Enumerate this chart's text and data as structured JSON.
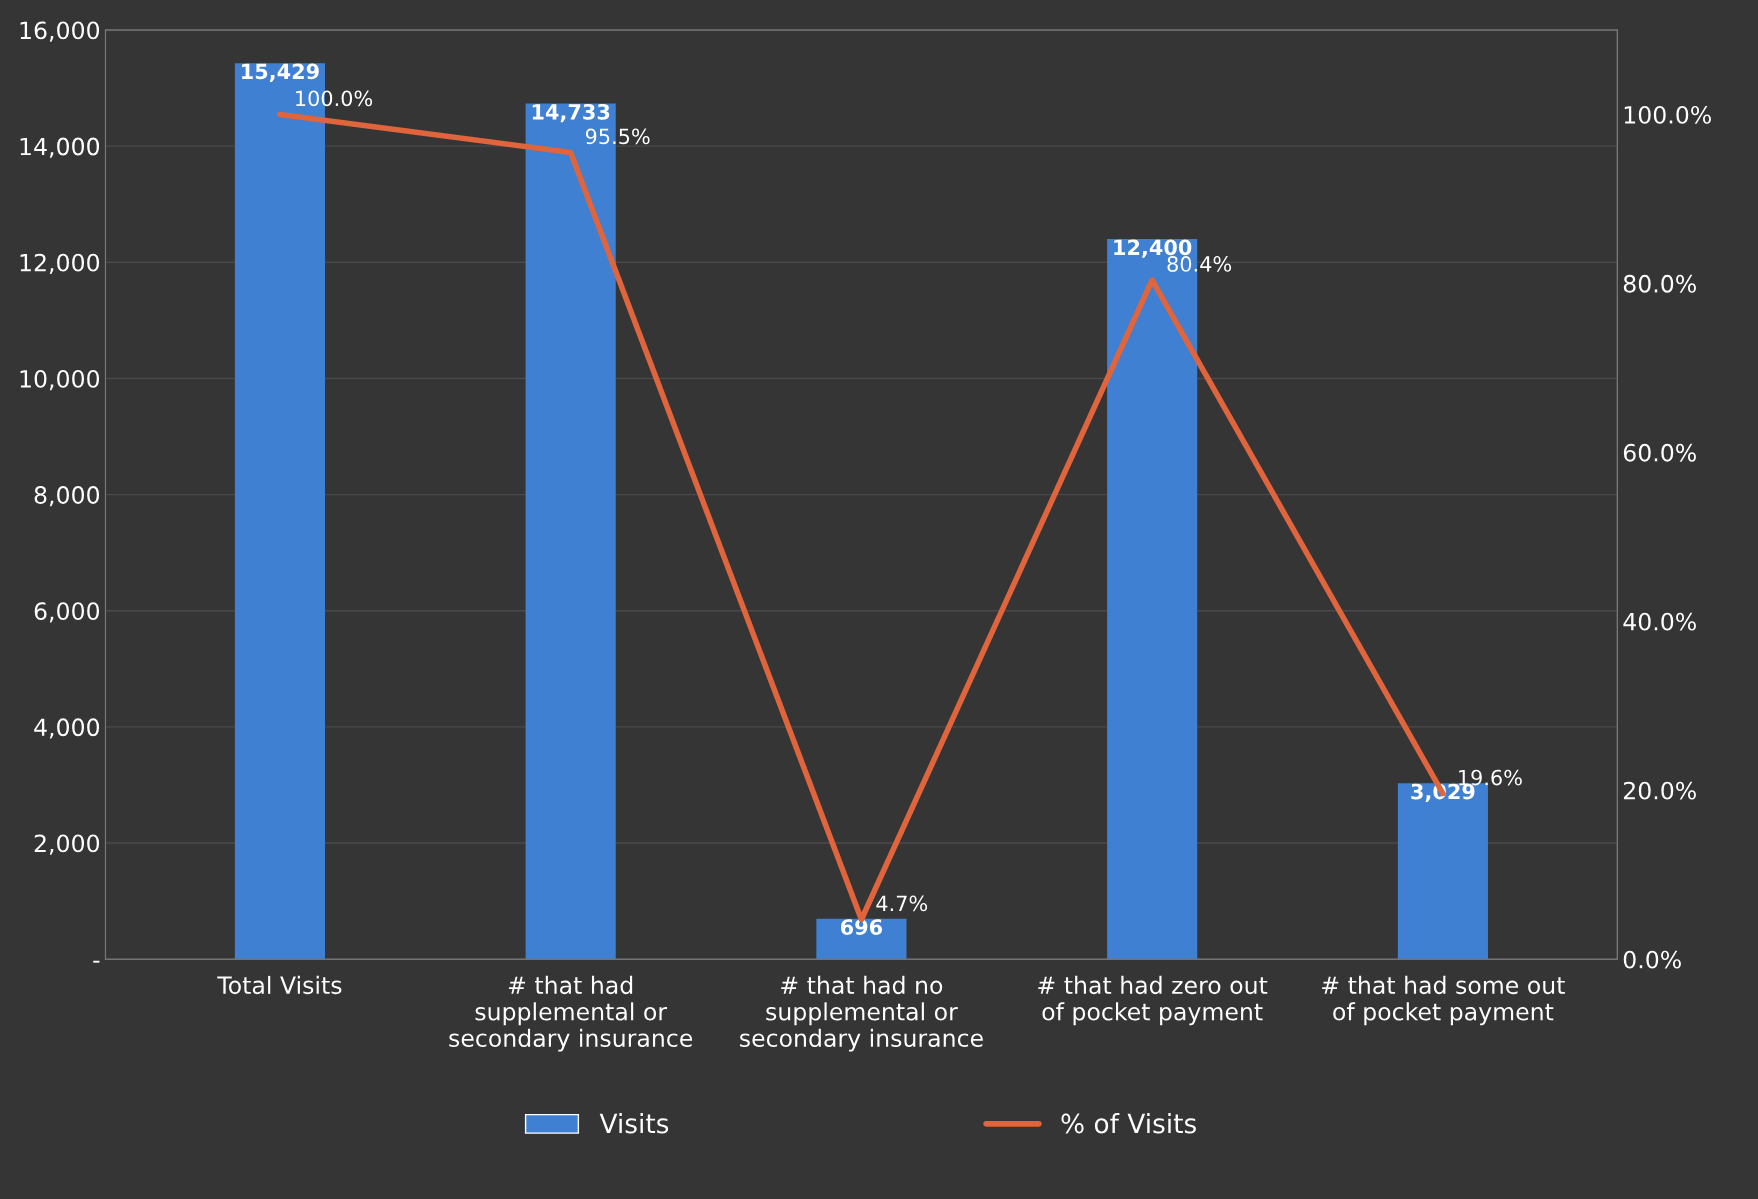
{
  "chart_data": {
    "type": "bar",
    "categories": [
      "Total Visits",
      "# that had supplemental or secondary insurance",
      "# that had no supplemental or secondary insurance",
      "# that had zero out of pocket payment",
      "# that had some out of pocket payment"
    ],
    "series": [
      {
        "name": "Visits",
        "color": "#3f80d2",
        "values": [
          15429,
          14733,
          696,
          12400,
          3029
        ],
        "value_labels": [
          "15,429",
          "14,733",
          "696",
          "12,400",
          "3,029"
        ]
      },
      {
        "name": "% of Visits",
        "type": "line",
        "axis": "y2",
        "color": "#e0643c",
        "values": [
          100.0,
          95.5,
          4.7,
          80.4,
          19.6
        ],
        "value_labels": [
          "100.0%",
          "95.5%",
          "4.7%",
          "80.4%",
          "19.6%"
        ]
      }
    ],
    "ylim": [
      0,
      16000
    ],
    "yticks": [
      {
        "value": 0,
        "label": "-"
      },
      {
        "value": 2000,
        "label": "2,000"
      },
      {
        "value": 4000,
        "label": "4,000"
      },
      {
        "value": 6000,
        "label": "6,000"
      },
      {
        "value": 8000,
        "label": "8,000"
      },
      {
        "value": 10000,
        "label": "10,000"
      },
      {
        "value": 12000,
        "label": "12,000"
      },
      {
        "value": 14000,
        "label": "14,000"
      },
      {
        "value": 16000,
        "label": "16,000"
      }
    ],
    "y2lim": [
      0,
      110
    ],
    "y2ticks": [
      {
        "value": 0,
        "label": "0.0%"
      },
      {
        "value": 20,
        "label": "20.0%"
      },
      {
        "value": 40,
        "label": "40.0%"
      },
      {
        "value": 60,
        "label": "60.0%"
      },
      {
        "value": 80,
        "label": "80.0%"
      },
      {
        "value": 100,
        "label": "100.0%"
      }
    ],
    "grid": "y",
    "legend": "bottom",
    "marker": "none",
    "line_style": "solid"
  }
}
